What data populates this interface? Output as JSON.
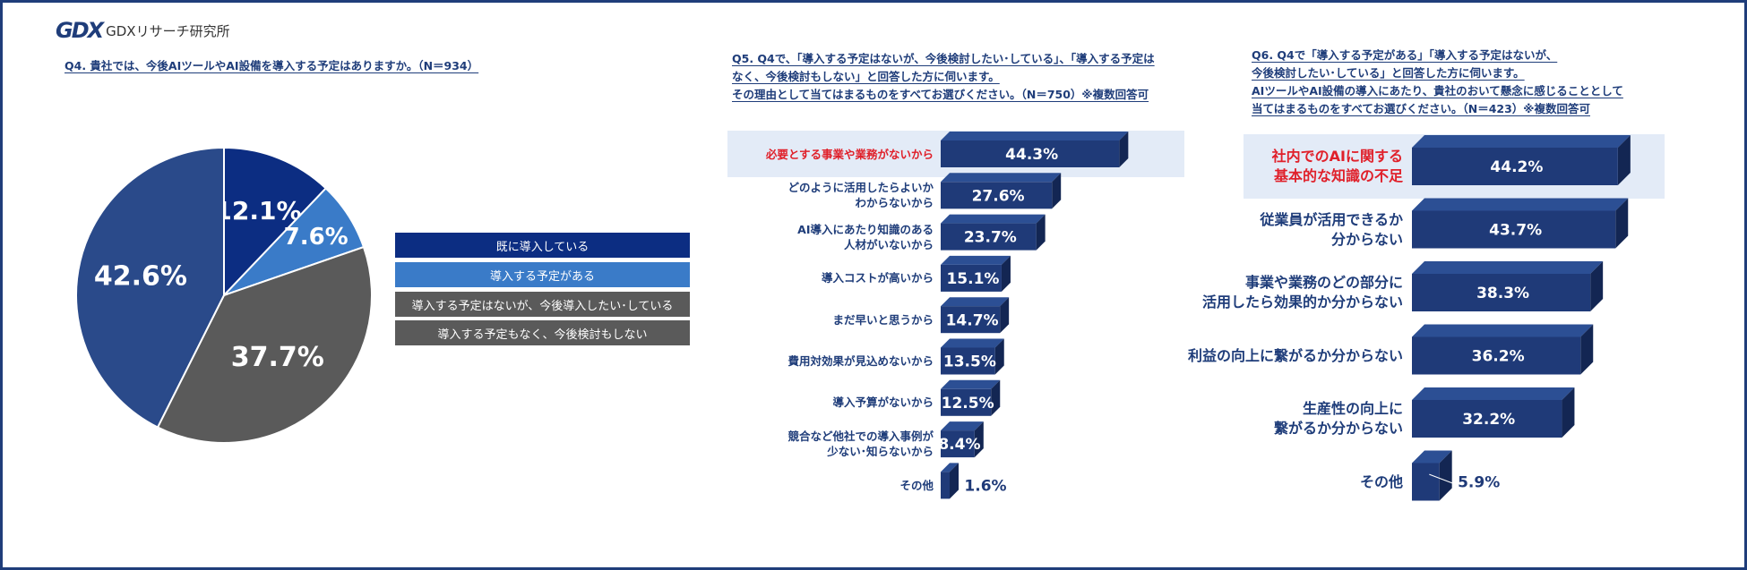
{
  "logo": {
    "mark": "GDX",
    "text": "GDXリサーチ研究所"
  },
  "colors": {
    "navy": "#1f3a78",
    "navy_top": "#2c4f94",
    "navy_side": "#132653",
    "pie_dark": "#0c2d82",
    "pie_light": "#3a7bc8",
    "pie_gray": "#5a5a5a",
    "pie_blue": "#2a4a8a",
    "highlight_text": "#e0202a"
  },
  "q4": {
    "title": "Q4. 貴社では、今後AIツールやAI設備を導入する予定はありますか。（N＝934）",
    "legend": [
      "既に導入している",
      "導入する予定がある",
      "導入する予定はないが、今後導入したい･している",
      "導入する予定もなく、今後検討もしない"
    ]
  },
  "q5": {
    "title_lines": [
      "Q5. Q4で、「導入する予定はないが、今後検討したい･している」、「導入する予定は",
      "なく、今後検討もしない」と回答した方に伺います。",
      "その理由として当てはまるものをすべてお選びください。（N＝750）※複数回答可"
    ]
  },
  "q6": {
    "title_lines": [
      "Q6. Q4で「導入する予定がある」「導入する予定はないが、",
      "今後検討したい･している」と回答した方に伺います。",
      "AIツールやAI設備の導入にあたり、貴社のおいて懸念に感じることとして",
      "当てはまるものをすべてお選びください。（N＝423）※複数回答可"
    ]
  },
  "chart_data": [
    {
      "type": "pie",
      "title": "Q4. 貴社では、今後AIツールやAI設備を導入する予定はありますか。（N＝934）",
      "categories": [
        "既に導入している",
        "導入する予定がある",
        "導入する予定はないが、今後導入したい･している",
        "導入する予定もなく、今後検討もしない"
      ],
      "values": [
        12.1,
        7.6,
        37.7,
        42.6
      ],
      "labels": [
        "12.1%",
        "7.6%",
        "37.7%",
        "42.6%"
      ],
      "legend": "right"
    },
    {
      "type": "bar",
      "orientation": "horizontal",
      "title": "Q5",
      "categories": [
        "必要とする事業や業務がないから",
        "どのように活用したらよいか\nわからないから",
        "AI導入にあたり知識のある\n人材がいないから",
        "導入コストが高いから",
        "まだ早いと思うから",
        "費用対効果が見込めないから",
        "導入予算がないから",
        "競合など他社での導入事例が\n少ない･知らないから",
        "その他"
      ],
      "values": [
        44.3,
        27.6,
        23.7,
        15.1,
        14.7,
        13.5,
        12.5,
        8.4,
        1.6
      ],
      "labels": [
        "44.3%",
        "27.6%",
        "23.7%",
        "15.1%",
        "14.7%",
        "13.5%",
        "12.5%",
        "8.4%",
        "1.6%"
      ],
      "highlighted": "必要とする事業や業務がないから"
    },
    {
      "type": "bar",
      "orientation": "horizontal",
      "title": "Q6",
      "categories": [
        "社内でのAIに関する\n基本的な知識の不足",
        "従業員が活用できるか\n分からない",
        "事業や業務のどの部分に\n活用したら効果的か分からない",
        "利益の向上に繋がるか分からない",
        "生産性の向上に\n繋がるか分からない",
        "その他"
      ],
      "values": [
        44.2,
        43.7,
        38.3,
        36.2,
        32.2,
        5.9
      ],
      "labels": [
        "44.2%",
        "43.7%",
        "38.3%",
        "36.2%",
        "32.2%",
        "5.9%"
      ],
      "highlighted": "社内でのAIに関する\n基本的な知識の不足"
    }
  ]
}
